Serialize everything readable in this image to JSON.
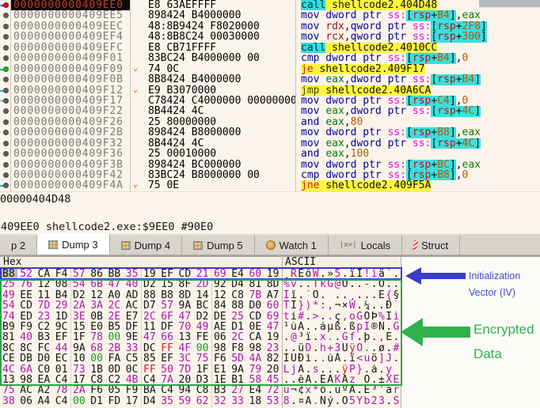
{
  "disasm": {
    "rows": [
      {
        "addr": "0000000000409EE0",
        "bytes": "E8 63AEFFFF",
        "dot": "red",
        "marker": "ip",
        "sel": true,
        "hl": true,
        "ins": [
          [
            "call",
            "ca"
          ],
          [
            " shellcode2.404D48",
            "t"
          ]
        ]
      },
      {
        "addr": "0000000000409EE5",
        "bytes": "898424 B4000000",
        "dot": "gray",
        "ins": [
          [
            "mov dword ptr ",
            "m"
          ],
          [
            "ss:",
            "s"
          ],
          [
            "[",
            "b"
          ],
          [
            "rsp",
            "rm"
          ],
          [
            "+",
            "b"
          ],
          [
            "B4",
            "nm"
          ],
          [
            "]",
            "b"
          ],
          [
            ",",
            "p"
          ],
          [
            "eax",
            "ra"
          ]
        ]
      },
      {
        "addr": "0000000000409EEC",
        "bytes": "48:8B9424 F8020000",
        "dot": "gray",
        "ins": [
          [
            "mov ",
            "m"
          ],
          [
            "rdx",
            "rr"
          ],
          [
            ",",
            "p"
          ],
          [
            "qword ptr ",
            "m"
          ],
          [
            "ss:",
            "s"
          ],
          [
            "[",
            "b"
          ],
          [
            "rsp",
            "rm"
          ],
          [
            "+",
            "b"
          ],
          [
            "2F8",
            "nm"
          ],
          [
            "]",
            "b"
          ]
        ]
      },
      {
        "addr": "0000000000409EF4",
        "bytes": "48:8B8C24 00030000",
        "dot": "gray",
        "ins": [
          [
            "mov ",
            "m"
          ],
          [
            "rcx",
            "rr"
          ],
          [
            ",",
            "p"
          ],
          [
            "qword ptr ",
            "m"
          ],
          [
            "ss:",
            "s"
          ],
          [
            "[",
            "b"
          ],
          [
            "rsp",
            "rm"
          ],
          [
            "+",
            "b"
          ],
          [
            "300",
            "nm"
          ],
          [
            "]",
            "b"
          ]
        ]
      },
      {
        "addr": "0000000000409EFC",
        "bytes": "E8 CB71FFFF",
        "dot": "gray",
        "hl": true,
        "ins": [
          [
            "call",
            "ca"
          ],
          [
            " shellcode2.4010CC",
            "t"
          ]
        ]
      },
      {
        "addr": "0000000000409F01",
        "bytes": "83BC24 B4000000 00",
        "dot": "gray",
        "ins": [
          [
            "cmp dword ptr ",
            "m"
          ],
          [
            "ss:",
            "s"
          ],
          [
            "[",
            "b"
          ],
          [
            "rsp",
            "rm"
          ],
          [
            "+",
            "b"
          ],
          [
            "B4",
            "nm"
          ],
          [
            "]",
            "b"
          ],
          [
            ",",
            "p"
          ],
          [
            "0",
            "n"
          ]
        ]
      },
      {
        "addr": "0000000000409F09",
        "bytes": "74 0C",
        "dot": "green",
        "marker": "stub",
        "chev": true,
        "hl": true,
        "ins": [
          [
            "je",
            "jc"
          ],
          [
            " shellcode2.409F17",
            "t"
          ]
        ]
      },
      {
        "addr": "0000000000409F0B",
        "bytes": "8B8424 B4000000",
        "dot": "gray",
        "ins": [
          [
            "mov ",
            "m"
          ],
          [
            "eax",
            "ra"
          ],
          [
            ",",
            "p"
          ],
          [
            "dword ptr ",
            "m"
          ],
          [
            "ss:",
            "s"
          ],
          [
            "[",
            "b"
          ],
          [
            "rsp",
            "rm"
          ],
          [
            "+",
            "b"
          ],
          [
            "B4",
            "nm"
          ],
          [
            "]",
            "b"
          ]
        ]
      },
      {
        "addr": "0000000000409F12",
        "bytes": "E9 B3070000",
        "dot": "gray",
        "marker": "stub",
        "chev": true,
        "hl": true,
        "ins": [
          [
            "jmp",
            "jm"
          ],
          [
            " shellcode2.40A6CA",
            "t"
          ]
        ]
      },
      {
        "addr": "0000000000409F17",
        "bytes": "C78424 C4000000 00000000",
        "dot": "gray",
        "marker": "tgt",
        "ins": [
          [
            "mov dword ptr ",
            "m"
          ],
          [
            "ss:",
            "s"
          ],
          [
            "[",
            "b"
          ],
          [
            "rsp",
            "rm"
          ],
          [
            "+",
            "b"
          ],
          [
            "C4",
            "nm"
          ],
          [
            "]",
            "b"
          ],
          [
            ",",
            "p"
          ],
          [
            "0",
            "n"
          ]
        ]
      },
      {
        "addr": "0000000000409F22",
        "bytes": "8B4424 4C",
        "dot": "gray",
        "ins": [
          [
            "mov ",
            "m"
          ],
          [
            "eax",
            "ra"
          ],
          [
            ",",
            "p"
          ],
          [
            "dword ptr ",
            "m"
          ],
          [
            "ss:",
            "s"
          ],
          [
            "[",
            "b"
          ],
          [
            "rsp",
            "rm"
          ],
          [
            "+",
            "b"
          ],
          [
            "4C",
            "nm"
          ],
          [
            "]",
            "b"
          ]
        ]
      },
      {
        "addr": "0000000000409F26",
        "bytes": "25 80000000",
        "dot": "gray",
        "ins": [
          [
            "and ",
            "m"
          ],
          [
            "eax",
            "ra"
          ],
          [
            ",",
            "p"
          ],
          [
            "80",
            "n"
          ]
        ]
      },
      {
        "addr": "0000000000409F2B",
        "bytes": "898424 B8000000",
        "dot": "gray",
        "ins": [
          [
            "mov dword ptr ",
            "m"
          ],
          [
            "ss:",
            "s"
          ],
          [
            "[",
            "b"
          ],
          [
            "rsp",
            "rm"
          ],
          [
            "+",
            "b"
          ],
          [
            "B8",
            "nm"
          ],
          [
            "]",
            "b"
          ],
          [
            ",",
            "p"
          ],
          [
            "eax",
            "ra"
          ]
        ]
      },
      {
        "addr": "0000000000409F32",
        "bytes": "8B4424 4C",
        "dot": "gray",
        "ins": [
          [
            "mov ",
            "m"
          ],
          [
            "eax",
            "ra"
          ],
          [
            ",",
            "p"
          ],
          [
            "dword ptr ",
            "m"
          ],
          [
            "ss:",
            "s"
          ],
          [
            "[",
            "b"
          ],
          [
            "rsp",
            "rm"
          ],
          [
            "+",
            "b"
          ],
          [
            "4C",
            "nm"
          ],
          [
            "]",
            "b"
          ]
        ]
      },
      {
        "addr": "0000000000409F36",
        "bytes": "25 00010000",
        "dot": "gray",
        "ins": [
          [
            "and ",
            "m"
          ],
          [
            "eax",
            "ra"
          ],
          [
            ",",
            "p"
          ],
          [
            "100",
            "n"
          ]
        ]
      },
      {
        "addr": "0000000000409F3B",
        "bytes": "898424 BC000000",
        "dot": "gray",
        "ins": [
          [
            "mov dword ptr ",
            "m"
          ],
          [
            "ss:",
            "s"
          ],
          [
            "[",
            "b"
          ],
          [
            "rsp",
            "rm"
          ],
          [
            "+",
            "b"
          ],
          [
            "BC",
            "nm"
          ],
          [
            "]",
            "b"
          ],
          [
            ",",
            "p"
          ],
          [
            "eax",
            "ra"
          ]
        ]
      },
      {
        "addr": "0000000000409F42",
        "bytes": "83BC24 B8000000 00",
        "dot": "gray",
        "ins": [
          [
            "cmp dword ptr ",
            "m"
          ],
          [
            "ss:",
            "s"
          ],
          [
            "[",
            "b"
          ],
          [
            "rsp",
            "rm"
          ],
          [
            "+",
            "b"
          ],
          [
            "B8",
            "nm"
          ],
          [
            "]",
            "b"
          ],
          [
            ",",
            "p"
          ],
          [
            "0",
            "n"
          ]
        ]
      },
      {
        "addr": "0000000000409F4A",
        "bytes": "75 0E",
        "dot": "gray",
        "marker": "stub",
        "chev": true,
        "hl": true,
        "ins": [
          [
            "jne",
            "jc"
          ],
          [
            " shellcode2.409F5A",
            "t"
          ]
        ]
      }
    ]
  },
  "info": {
    "call_target": "00000404D48",
    "status": "409EE0 shellcode2.exe:$9EE0 #90E0"
  },
  "tabs": [
    {
      "label": "p 2",
      "icon": "none",
      "active": false
    },
    {
      "label": "Dump 3",
      "icon": "dump",
      "active": true
    },
    {
      "label": "Dump 4",
      "icon": "dump",
      "active": false
    },
    {
      "label": "Dump 5",
      "icon": "dump",
      "active": false
    },
    {
      "label": "Watch 1",
      "icon": "watch",
      "active": false
    },
    {
      "label": "Locals",
      "icon": "locals",
      "active": false
    },
    {
      "label": "Struct",
      "icon": "struct",
      "active": false
    }
  ],
  "icons": {
    "locals_glyph": "|x=|",
    "ip_arrow": "→",
    "jump_target_arrow": "→",
    "jump_chevron": "⌄"
  },
  "dump": {
    "header_hex": "Hex",
    "header_ascii": "ASCII",
    "rows": [
      {
        "b": [
          "B8",
          "52",
          "CA",
          "F4",
          "57",
          "86",
          "BB",
          "35",
          "19",
          "EF",
          "CD",
          "21",
          "69",
          "E4",
          "60",
          "19"
        ],
        "a": "¸RÊôW.»5.ïÍ!iä`."
      },
      {
        "b": [
          "25",
          "76",
          "12",
          "08",
          "54",
          "6B",
          "47",
          "40",
          "D2",
          "15",
          "8F",
          "2D",
          "92",
          "D4",
          "81",
          "8D"
        ],
        "a": "%v..TkG@Ò..-.Ô.."
      },
      {
        "b": [
          "49",
          "EE",
          "11",
          "B4",
          "D2",
          "12",
          "A0",
          "AD",
          "88",
          "B8",
          "8D",
          "14",
          "12",
          "C8",
          "7B",
          "A7"
        ],
        "a": "Iî.´Ò. ..¸...È{§"
      },
      {
        "b": [
          "54",
          "CD",
          "7D",
          "29",
          "2A",
          "3A",
          "2C",
          "AC",
          "D7",
          "57",
          "9A",
          "BC",
          "84",
          "88",
          "D0",
          "60"
        ],
        "a": "TÍ})*:,¬×W.¼..Ð`"
      },
      {
        "b": [
          "74",
          "ED",
          "23",
          "1D",
          "3E",
          "0B",
          "2E",
          "E7",
          "2C",
          "6F",
          "47",
          "D2",
          "DE",
          "25",
          "CD",
          "69"
        ],
        "a": "tí#.>..ç,oGÒÞ%Íi"
      },
      {
        "b": [
          "B9",
          "F9",
          "C2",
          "9C",
          "15",
          "E0",
          "B5",
          "DF",
          "11",
          "DF",
          "70",
          "49",
          "AE",
          "D1",
          "0E",
          "47"
        ],
        "a": "¹ùÂ..àµß.ßpI®Ñ.G"
      },
      {
        "b": [
          "81",
          "40",
          "B3",
          "EF",
          "1F",
          "78",
          "00",
          "9E",
          "47",
          "66",
          "13",
          "FE",
          "06",
          "2C",
          "CA",
          "19"
        ],
        "a": ".@³ï.x..Gf.þ.,Ê."
      },
      {
        "b": [
          "8C",
          "8C",
          "FC",
          "44",
          "9A",
          "68",
          "2B",
          "33",
          "DC",
          "FF",
          "4F",
          "00",
          "98",
          "F8",
          "98",
          "23"
        ],
        "a": "..üD.h+3ÜÿO..ø.#"
      },
      {
        "b": [
          "CE",
          "DB",
          "D0",
          "EC",
          "10",
          "00",
          "FA",
          "C5",
          "85",
          "EF",
          "3C",
          "75",
          "F6",
          "5D",
          "4A",
          "82"
        ],
        "a": "ÎÛÐì..úÅ.ï<uö]J."
      },
      {
        "b": [
          "4C",
          "6A",
          "C0",
          "01",
          "73",
          "1B",
          "0D",
          "0C",
          "FF",
          "50",
          "7D",
          "1F",
          "E1",
          "9A",
          "79",
          "20"
        ],
        "a": "LjÀ.s...ÿP}.á.y "
      },
      {
        "b": [
          "13",
          "98",
          "EA",
          "C4",
          "17",
          "C8",
          "C2",
          "4B",
          "C4",
          "7A",
          "20",
          "D3",
          "1E",
          "B1",
          "58",
          "45"
        ],
        "a": "..êÄ.ÈÂKÄz Ó.±XE"
      },
      {
        "b": [
          "75",
          "AC",
          "A2",
          "78",
          "2A",
          "F6",
          "05",
          "F9",
          "BA",
          "C4",
          "94",
          "C8",
          "B3",
          "27",
          "E4",
          "72"
        ],
        "a": "u¬¢x*ö.ùºÄ.È³'är"
      },
      {
        "b": [
          "38",
          "06",
          "A4",
          "C4",
          "00",
          "D1",
          "FD",
          "17",
          "D4",
          "35",
          "59",
          "62",
          "32",
          "33",
          "18",
          "53"
        ],
        "a": "8.¤Ä.Ñý.Ô5Yb23.S"
      }
    ]
  },
  "annotations": {
    "iv": {
      "line1": "Initialization",
      "line2": "Vector (IV)",
      "color": "#4A4ACA",
      "arrow_color": "#3B3BCB"
    },
    "enc": {
      "line1": "Encrypted",
      "line2": "Data",
      "color": "#2FB14E",
      "arrow_color": "#2FB14E"
    }
  },
  "colors": {
    "highlight_yellow": "#FFF63F",
    "call_cyan": "#2FE0E0",
    "mem_cyan": "#3BDEDE",
    "byte_zero_green": "#12A012",
    "byte_ff_red": "#D82020",
    "byte_print_magenta": "#B014B0",
    "iv_box_blue": "#3B3BCB",
    "enc_box_green": "#28A844",
    "breakpoint_red": "#E01212",
    "flow_green": "#17B317"
  }
}
